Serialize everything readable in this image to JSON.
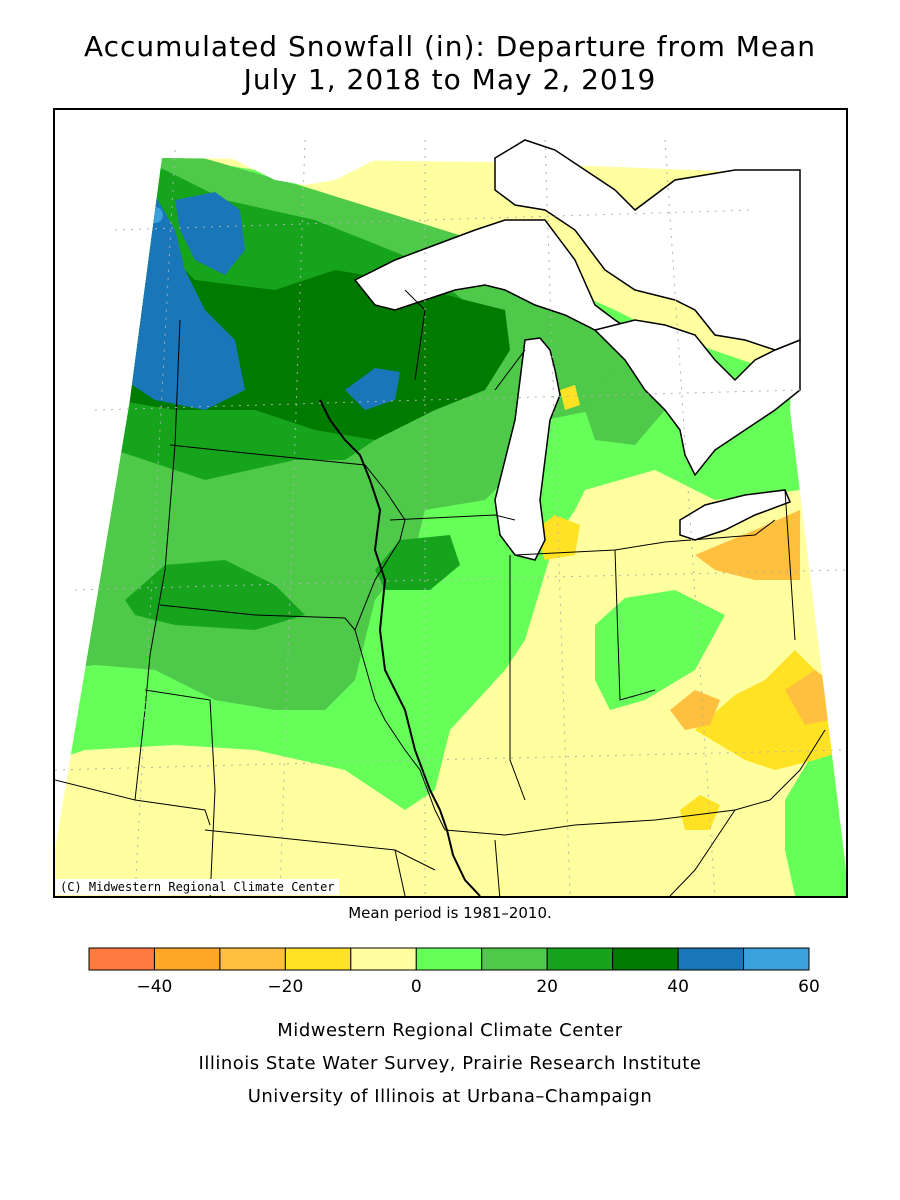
{
  "header": {
    "title_line1": "Accumulated Snowfall (in): Departure from Mean",
    "title_line2": "July 1, 2018 to May 2, 2019"
  },
  "map": {
    "copyright": "(C) Midwestern Regional Climate Center",
    "mean_period": "Mean period is 1981–2010."
  },
  "legend": {
    "bins": [
      {
        "from": -50,
        "to": -40,
        "color": "#ff7a3d"
      },
      {
        "from": -40,
        "to": -30,
        "color": "#ffa726"
      },
      {
        "from": -30,
        "to": -20,
        "color": "#ffc040"
      },
      {
        "from": -20,
        "to": -10,
        "color": "#ffe224"
      },
      {
        "from": -10,
        "to": 0,
        "color": "#ffff9f"
      },
      {
        "from": 0,
        "to": 10,
        "color": "#66ff5a"
      },
      {
        "from": 10,
        "to": 20,
        "color": "#4fc94a"
      },
      {
        "from": 20,
        "to": 30,
        "color": "#17a41d"
      },
      {
        "from": 30,
        "to": 40,
        "color": "#007b00"
      },
      {
        "from": 40,
        "to": 50,
        "color": "#1976b9"
      },
      {
        "from": 50,
        "to": 60,
        "color": "#3aa0de"
      }
    ],
    "tick_labels": [
      "−40",
      "−20",
      "0",
      "20",
      "40",
      "60"
    ]
  },
  "credits": {
    "line1": "Midwestern Regional Climate Center",
    "line2": "Illinois State Water Survey, Prairie Research Institute",
    "line3": "University of Illinois at Urbana–Champaign"
  }
}
